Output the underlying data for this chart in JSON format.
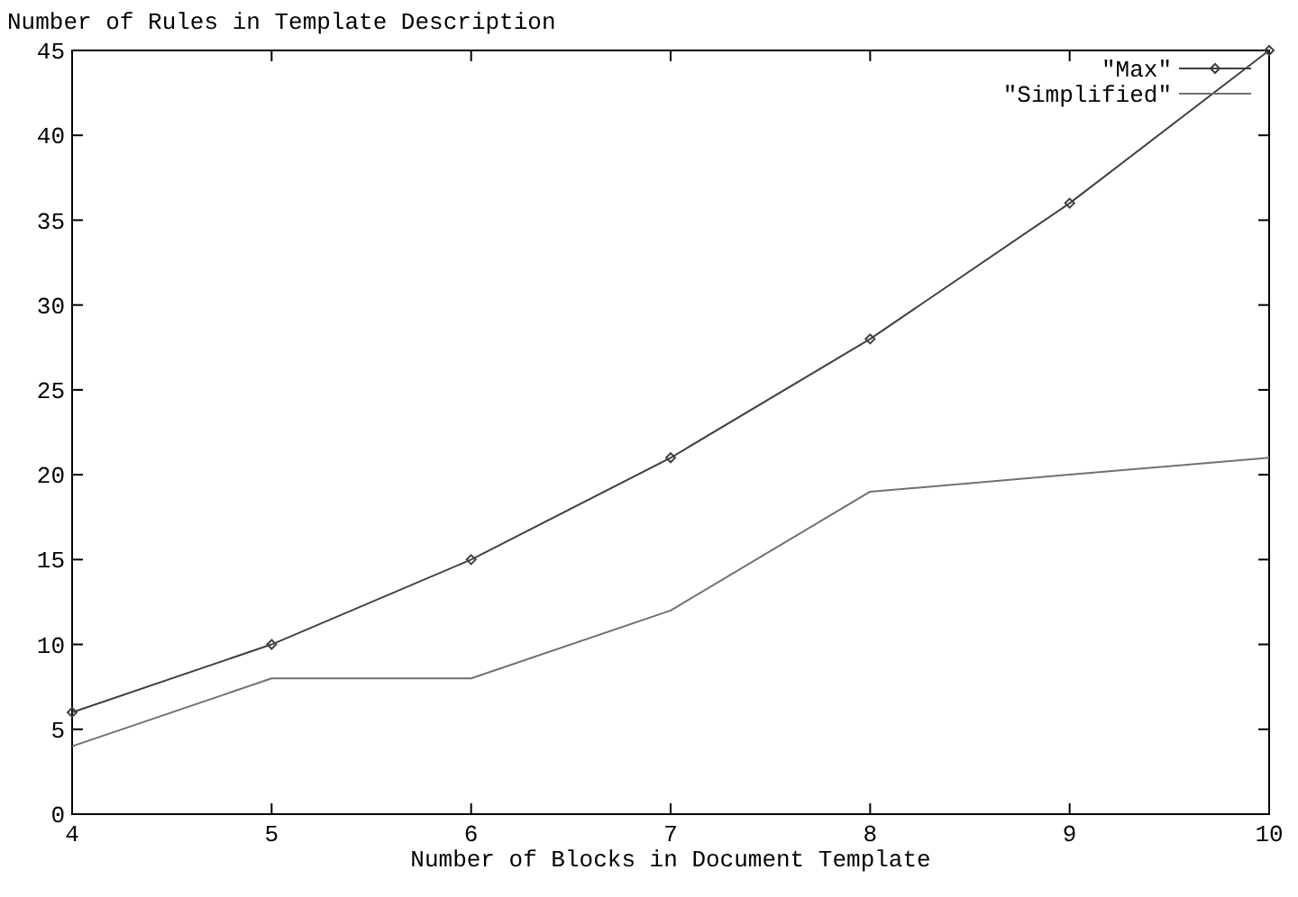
{
  "chart_data": {
    "type": "line",
    "title": "Number of Rules in Template Description",
    "xlabel": "Number of Blocks in Document Template",
    "x": [
      4,
      5,
      6,
      7,
      8,
      9,
      10
    ],
    "series": [
      {
        "name": "\"Max\"",
        "color": "#404040",
        "values": [
          6,
          10,
          15,
          21,
          28,
          36,
          45
        ],
        "marker": "diamond"
      },
      {
        "name": "\"Simplified\"",
        "color": "#707070",
        "values": [
          4,
          8,
          8,
          12,
          19,
          20,
          21
        ],
        "marker": "none"
      }
    ],
    "xlim": [
      4,
      10
    ],
    "xticks": [
      4,
      5,
      6,
      7,
      8,
      9,
      10
    ],
    "ylim": [
      0,
      45
    ],
    "yticks": [
      0,
      5,
      10,
      15,
      20,
      25,
      30,
      35,
      40,
      45
    ],
    "grid": false,
    "legend": "top right",
    "line_style": "solid"
  }
}
